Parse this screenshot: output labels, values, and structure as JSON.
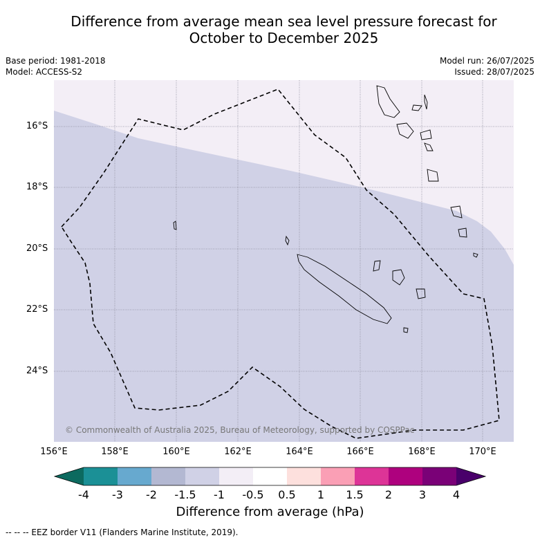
{
  "title": {
    "line1": "Difference from average mean sea level pressure forecast for",
    "line2": "October to December 2025"
  },
  "meta": {
    "base_period": "Base period: 1981-2018",
    "model": "Model: ACCESS-S2",
    "model_run": "Model run: 26/07/2025",
    "issued": "Issued: 28/07/2025"
  },
  "map": {
    "copyright": "© Commonwealth of Australia 2025, Bureau of Meteorology, supported by COSPPac",
    "lat_labels": [
      "16°S",
      "18°S",
      "20°S",
      "22°S",
      "24°S"
    ],
    "lon_labels": [
      "156°E",
      "158°E",
      "160°E",
      "162°E",
      "164°E",
      "166°E",
      "168°E",
      "170°E"
    ],
    "colors": {
      "fill_minus_1_5_to_minus_1": "#d0d1e6",
      "fill_minus_1_to_minus_0_5": "#f3eef6",
      "coast": "#000000",
      "eez_border": "#000000"
    }
  },
  "colorbar": {
    "tick_labels": [
      "-4",
      "-3",
      "-2",
      "-1.5",
      "-1",
      "-0.5",
      "0.5",
      "1",
      "1.5",
      "2",
      "3",
      "4"
    ],
    "colors": [
      "#0c6a5f",
      "#1b9096",
      "#67a9cf",
      "#b3b8d2",
      "#d0d1e6",
      "#f3eef6",
      "#ffffff",
      "#fde0dd",
      "#fa9fb5",
      "#dd3497",
      "#ae017e",
      "#7a0177",
      "#49006a"
    ],
    "label": "Difference from average (hPa)"
  },
  "footer": "--  --  -- EEZ border V11 (Flanders Marine Institute, 2019)."
}
